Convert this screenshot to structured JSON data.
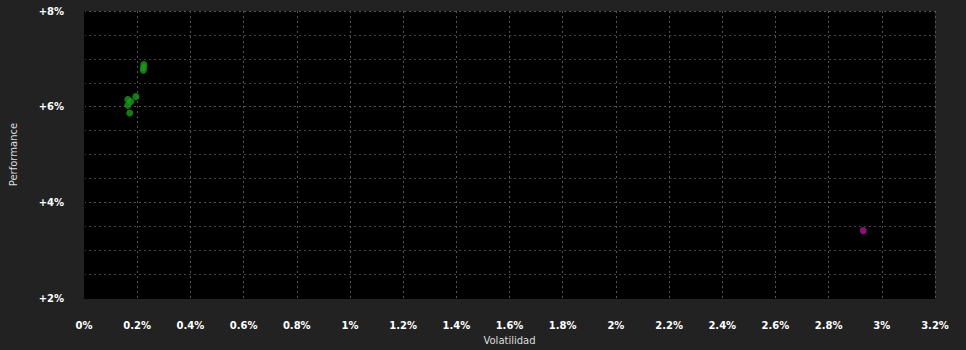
{
  "chart_data": {
    "type": "scatter",
    "x_label": "Volatilidad",
    "y_label": "Performance",
    "series": [
      {
        "color": "#1a9a1a",
        "x": [
          0.225,
          0.224,
          0.223,
          0.195,
          0.165,
          0.176,
          0.165,
          0.172
        ],
        "values": [
          6.88,
          6.82,
          6.76,
          6.21,
          6.15,
          6.11,
          6.03,
          5.87
        ]
      },
      {
        "color": "#b0129c",
        "x": [
          2.93
        ],
        "values": [
          3.41
        ]
      }
    ],
    "xlim": [
      0,
      3.2
    ],
    "xticks": [
      {
        "value": 0,
        "label": "0%"
      },
      {
        "value": 0.2,
        "label": "0.2%"
      },
      {
        "value": 0.4,
        "label": "0.4%"
      },
      {
        "value": 0.6,
        "label": "0.6%"
      },
      {
        "value": 0.8,
        "label": "0.8%"
      },
      {
        "value": 1,
        "label": "1%"
      },
      {
        "value": 1.2,
        "label": "1.2%"
      },
      {
        "value": 1.4,
        "label": "1.4%"
      },
      {
        "value": 1.6,
        "label": "1.6%"
      },
      {
        "value": 1.8,
        "label": "1.8%"
      },
      {
        "value": 2,
        "label": "2%"
      },
      {
        "value": 2.2,
        "label": "2.2%"
      },
      {
        "value": 2.4,
        "label": "2.4%"
      },
      {
        "value": 2.6,
        "label": "2.6%"
      },
      {
        "value": 2.8,
        "label": "2.8%"
      },
      {
        "value": 3,
        "label": "3%"
      },
      {
        "value": 3.2,
        "label": "3.2%"
      }
    ],
    "ylim": [
      2,
      8
    ],
    "yticks": [
      {
        "value": 2,
        "label": "+2%"
      },
      {
        "value": 4,
        "label": "+4%"
      },
      {
        "value": 6,
        "label": "+6%"
      },
      {
        "value": 8,
        "label": "+8%"
      }
    ],
    "grid": true
  }
}
